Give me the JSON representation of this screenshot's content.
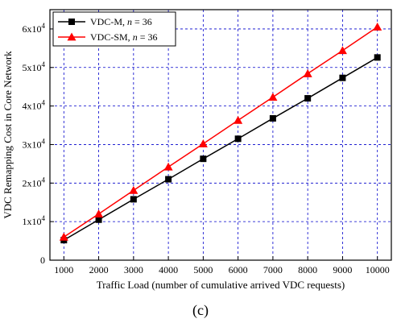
{
  "chart_data": {
    "type": "line",
    "title": "",
    "xlabel": "Traffic Load (number of cumulative  arrived VDC requests)",
    "ylabel": "VDC Remapping Cost in Core Network",
    "caption": "(c)",
    "x": [
      1000,
      2000,
      3000,
      4000,
      5000,
      6000,
      7000,
      8000,
      9000,
      10000
    ],
    "xticks": [
      "1000",
      "2000",
      "3000",
      "4000",
      "5000",
      "6000",
      "7000",
      "8000",
      "9000",
      "10000"
    ],
    "xlim": [
      600,
      10400
    ],
    "ylim": [
      0,
      65000
    ],
    "yticks": [
      {
        "value": 0,
        "base": "0",
        "exp": ""
      },
      {
        "value": 10000,
        "base": "1x10",
        "exp": "4"
      },
      {
        "value": 20000,
        "base": "2x10",
        "exp": "4"
      },
      {
        "value": 30000,
        "base": "3x10",
        "exp": "4"
      },
      {
        "value": 40000,
        "base": "4x10",
        "exp": "4"
      },
      {
        "value": 50000,
        "base": "5x10",
        "exp": "4"
      },
      {
        "value": 60000,
        "base": "6x10",
        "exp": "4"
      }
    ],
    "grid": true,
    "legend_position": "top-left",
    "series": [
      {
        "name": "VDC-M, n = 36",
        "name_base": "VDC-M, ",
        "name_var": "n",
        "name_rest": " = 36",
        "marker": "square",
        "color": "#000000",
        "values": [
          5200,
          10500,
          15800,
          21000,
          26300,
          31500,
          36800,
          42000,
          47300,
          52600
        ]
      },
      {
        "name": "VDC-SM, n = 36",
        "name_base": "VDC-SM, ",
        "name_var": "n",
        "name_rest": " = 36",
        "marker": "triangle",
        "color": "#ff0000",
        "values": [
          6000,
          12000,
          18100,
          24200,
          30200,
          36300,
          42300,
          48400,
          54400,
          60500
        ]
      }
    ],
    "grid_color": "#0000cc"
  }
}
